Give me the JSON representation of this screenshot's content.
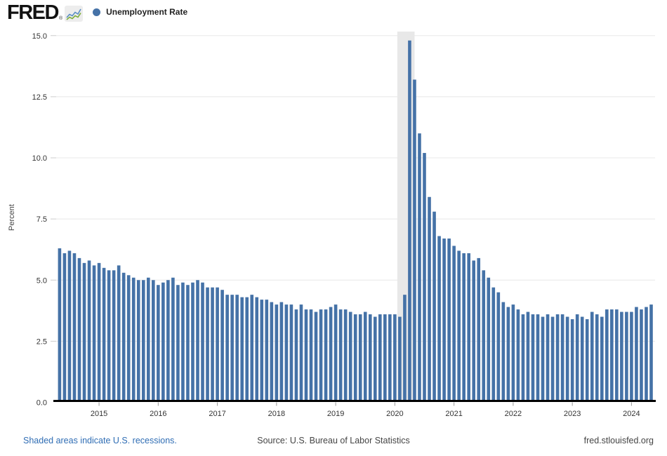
{
  "header": {
    "logo_text": "FRED",
    "registered_mark": "®",
    "legend_label": "Unemployment Rate",
    "legend_dot_color": "#4572a7"
  },
  "footer": {
    "recession_note": "Shaded areas indicate U.S. recessions.",
    "source": "Source: U.S. Bureau of Labor Statistics",
    "site": "fred.stlouisfed.org",
    "link_color": "#2f6db4"
  },
  "chart_data": {
    "type": "bar",
    "title": "Unemployment Rate",
    "ylabel": "Percent",
    "xlabel": "",
    "ylim": [
      0,
      15
    ],
    "grid": true,
    "frequency": "monthly",
    "start": "2014-05",
    "end": "2024-05",
    "bar_color": "#4572a7",
    "gridline_color": "#e8e8e8",
    "recession_band": {
      "start": "2020-02",
      "end": "2020-04",
      "color": "#e8e8e8"
    },
    "y_ticks": [
      {
        "value": 0,
        "label": "0.0"
      },
      {
        "value": 2.5,
        "label": "2.5"
      },
      {
        "value": 5,
        "label": "5.0"
      },
      {
        "value": 7.5,
        "label": "7.5"
      },
      {
        "value": 10,
        "label": "10.0"
      },
      {
        "value": 12.5,
        "label": "12.5"
      },
      {
        "value": 15,
        "label": "15.0"
      }
    ],
    "x_ticks": [
      {
        "year": 2015,
        "label": "2015"
      },
      {
        "year": 2016,
        "label": "2016"
      },
      {
        "year": 2017,
        "label": "2017"
      },
      {
        "year": 2018,
        "label": "2018"
      },
      {
        "year": 2019,
        "label": "2019"
      },
      {
        "year": 2020,
        "label": "2020"
      },
      {
        "year": 2021,
        "label": "2021"
      },
      {
        "year": 2022,
        "label": "2022"
      },
      {
        "year": 2023,
        "label": "2023"
      },
      {
        "year": 2024,
        "label": "2024"
      }
    ],
    "series": [
      {
        "name": "Unemployment Rate",
        "values": [
          6.3,
          6.1,
          6.2,
          6.1,
          5.9,
          5.7,
          5.8,
          5.6,
          5.7,
          5.5,
          5.4,
          5.4,
          5.6,
          5.3,
          5.2,
          5.1,
          5.0,
          5.0,
          5.1,
          5.0,
          4.8,
          4.9,
          5.0,
          5.1,
          4.8,
          4.9,
          4.8,
          4.9,
          5.0,
          4.9,
          4.7,
          4.7,
          4.7,
          4.6,
          4.4,
          4.4,
          4.4,
          4.3,
          4.3,
          4.4,
          4.3,
          4.2,
          4.2,
          4.1,
          4.0,
          4.1,
          4.0,
          4.0,
          3.8,
          4.0,
          3.8,
          3.8,
          3.7,
          3.8,
          3.8,
          3.9,
          4.0,
          3.8,
          3.8,
          3.7,
          3.6,
          3.6,
          3.7,
          3.6,
          3.5,
          3.6,
          3.6,
          3.6,
          3.6,
          3.5,
          4.4,
          14.8,
          13.2,
          11.0,
          10.2,
          8.4,
          7.8,
          6.8,
          6.7,
          6.7,
          6.4,
          6.2,
          6.1,
          6.1,
          5.8,
          5.9,
          5.4,
          5.1,
          4.7,
          4.5,
          4.1,
          3.9,
          4.0,
          3.8,
          3.6,
          3.7,
          3.6,
          3.6,
          3.5,
          3.6,
          3.5,
          3.6,
          3.6,
          3.5,
          3.4,
          3.6,
          3.5,
          3.4,
          3.7,
          3.6,
          3.5,
          3.8,
          3.8,
          3.8,
          3.7,
          3.7,
          3.7,
          3.9,
          3.8,
          3.9,
          4.0
        ]
      }
    ]
  }
}
